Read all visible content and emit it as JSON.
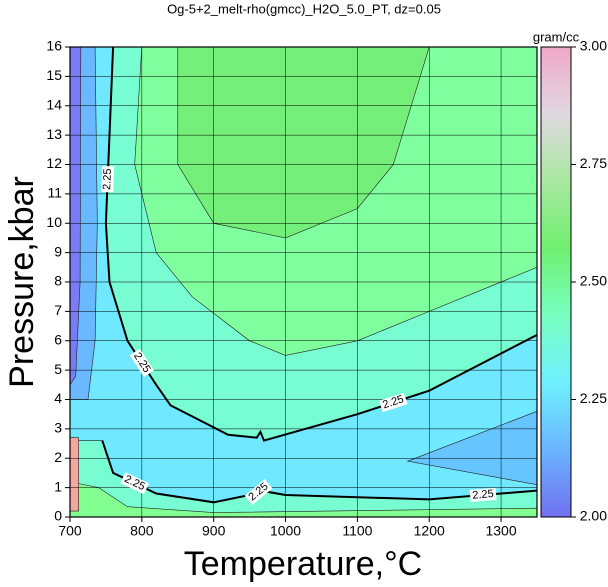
{
  "chart_data": {
    "type": "contour",
    "title": "Og-5+2_melt-rho(gmcc)_H2O_5.0_PT, dz=0.05",
    "xlabel": "Temperature,°C",
    "ylabel": "Pressure,kbar",
    "xlim": [
      700,
      1350
    ],
    "xticks": [
      700,
      800,
      900,
      1000,
      1100,
      1200,
      1300
    ],
    "ylim": [
      0,
      16
    ],
    "yticks": [
      0,
      1,
      2,
      3,
      4,
      5,
      6,
      7,
      8,
      9,
      10,
      11,
      12,
      13,
      14,
      15,
      16
    ],
    "grid": true,
    "background": "#78fcd2",
    "regions": [
      {
        "color": "#80ff9e",
        "x": [
          800,
          790,
          820,
          870,
          950,
          1000,
          1100,
          1200,
          1350,
          1350
        ],
        "y": [
          16,
          12,
          9,
          7.5,
          6,
          5.5,
          6,
          7,
          8.5,
          16
        ]
      },
      {
        "color": "#74f07a",
        "x": [
          850,
          850,
          900,
          1000,
          1100,
          1150,
          1200
        ],
        "y": [
          16,
          12,
          10,
          9.5,
          10.5,
          12,
          16
        ]
      },
      {
        "color": "#70e8ff",
        "x": [
          700,
          760,
          755,
          750,
          755,
          780,
          820,
          840,
          920,
          960,
          965,
          970,
          1100,
          1200,
          1350,
          1350,
          1200,
          1000,
          965,
          960,
          900,
          820,
          760,
          745,
          700
        ],
        "y": [
          16,
          16,
          13,
          10,
          8,
          6,
          4.5,
          3.8,
          2.8,
          2.7,
          2.9,
          2.6,
          3.5,
          4.3,
          6.2,
          0.9,
          0.6,
          0.75,
          0.9,
          0.8,
          0.5,
          0.8,
          1.5,
          2.6,
          2.6
        ]
      },
      {
        "color": "#6ab8ff",
        "x": [
          700,
          735,
          738,
          735,
          725,
          700
        ],
        "y": [
          16,
          16,
          10,
          6,
          4,
          4
        ]
      },
      {
        "color": "#66c4ff",
        "x": [
          1350,
          1170,
          1350
        ],
        "y": [
          3.6,
          1.9,
          1.1
        ]
      },
      {
        "color": "#7a7cf5",
        "x": [
          700,
          715,
          714,
          708,
          700
        ],
        "y": [
          16,
          16,
          8,
          4.8,
          4.5
        ]
      },
      {
        "color": "#82ff90",
        "x": [
          700,
          1350,
          1350,
          1200,
          900,
          780,
          740,
          700
        ],
        "y": [
          0,
          0,
          0.3,
          0.25,
          0.15,
          0.35,
          1,
          1.2
        ]
      },
      {
        "color": "#f4a6a0",
        "x": [
          700,
          712,
          712,
          700
        ],
        "y": [
          0.2,
          0.2,
          2.7,
          2.7
        ]
      }
    ],
    "contours": [
      {
        "label": "2.25",
        "x": [
          760,
          755,
          750,
          755,
          780,
          820,
          840,
          920,
          960,
          965,
          970,
          1100,
          1200,
          1350
        ],
        "y": [
          16,
          13,
          10,
          8,
          6,
          4.5,
          3.8,
          2.8,
          2.7,
          2.9,
          2.6,
          3.5,
          4.3,
          6.2
        ]
      },
      {
        "label": "2.25",
        "x": [
          745,
          760,
          820,
          900,
          960,
          965,
          1000,
          1200,
          1350
        ],
        "y": [
          2.6,
          1.5,
          0.8,
          0.5,
          0.8,
          0.9,
          0.75,
          0.6,
          0.9
        ]
      }
    ],
    "colorbar": {
      "label": "gram/cc",
      "lim": [
        2,
        3
      ],
      "ticks": [
        {
          "value": 2,
          "label": "2.00"
        },
        {
          "value": 2.25,
          "label": "2.25"
        },
        {
          "value": 2.5,
          "label": "2.50"
        },
        {
          "value": 2.75,
          "label": "2.75"
        },
        {
          "value": 3,
          "label": "3.00"
        }
      ],
      "colors": [
        "#7070f0",
        "#6ab4ff",
        "#70f0ff",
        "#78ffc0",
        "#70f070",
        "#a8e8a0",
        "#e0d8e0",
        "#f0a8c8"
      ]
    }
  }
}
